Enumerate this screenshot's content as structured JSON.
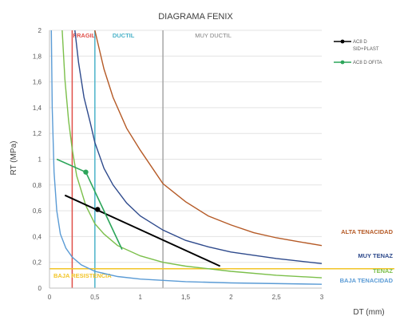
{
  "chart_data": {
    "type": "line",
    "title": "DIAGRAMA FENIX",
    "xlabel": "DT (mm)",
    "ylabel": "RT (MPa)",
    "xlim": [
      0,
      3
    ],
    "ylim": [
      0,
      2
    ],
    "grid": "horizontal",
    "x_ticks": [
      "0",
      "0,5",
      "1",
      "1,5",
      "2",
      "2,5",
      "3"
    ],
    "y_ticks": [
      "0",
      "0,2",
      "0,4",
      "0,6",
      "0,8",
      "1",
      "1,2",
      "1,4",
      "1,6",
      "1,8",
      "2"
    ],
    "legend_position": "top-right",
    "legend": [
      {
        "label_lines": [
          "AC8 D",
          "SID+PLAST"
        ],
        "color": "#000000"
      },
      {
        "label_lines": [
          "AC8 D OFITA"
        ],
        "color": "#2ca55a"
      }
    ],
    "vertical_lines": [
      {
        "x": 0.25,
        "label": "FRAGIL",
        "color": "#e0504a"
      },
      {
        "x": 0.5,
        "label": "DUCTIL",
        "color": "#4cb3c9"
      },
      {
        "x": 1.25,
        "label": "MUY DUCTIL",
        "color": "#a6a6a6"
      }
    ],
    "horizontal_lines": [
      {
        "y": 0.15,
        "label": "BAJA RESISTENCIA",
        "color": "#f2c427"
      }
    ],
    "reference_curves": [
      {
        "label": "ALTA TENACIDAD",
        "color": "#b55a26",
        "points": [
          [
            0.5,
            2.0
          ],
          [
            0.6,
            1.7
          ],
          [
            0.7,
            1.48
          ],
          [
            0.85,
            1.24
          ],
          [
            1.0,
            1.07
          ],
          [
            1.25,
            0.81
          ],
          [
            1.5,
            0.67
          ],
          [
            1.75,
            0.56
          ],
          [
            2.0,
            0.49
          ],
          [
            2.25,
            0.43
          ],
          [
            2.5,
            0.39
          ],
          [
            2.75,
            0.36
          ],
          [
            3.0,
            0.33
          ]
        ]
      },
      {
        "label": "MUY TENAZ",
        "color": "#2e4a8c",
        "points": [
          [
            0.28,
            2.0
          ],
          [
            0.32,
            1.75
          ],
          [
            0.38,
            1.48
          ],
          [
            0.45,
            1.28
          ],
          [
            0.5,
            1.13
          ],
          [
            0.6,
            0.93
          ],
          [
            0.7,
            0.8
          ],
          [
            0.85,
            0.66
          ],
          [
            1.0,
            0.56
          ],
          [
            1.25,
            0.45
          ],
          [
            1.5,
            0.37
          ],
          [
            1.75,
            0.32
          ],
          [
            2.0,
            0.28
          ],
          [
            2.5,
            0.23
          ],
          [
            3.0,
            0.19
          ]
        ]
      },
      {
        "label": "TENAZ",
        "color": "#7bbf4a",
        "points": [
          [
            0.14,
            2.0
          ],
          [
            0.17,
            1.62
          ],
          [
            0.21,
            1.3
          ],
          [
            0.25,
            1.08
          ],
          [
            0.3,
            0.87
          ],
          [
            0.4,
            0.64
          ],
          [
            0.5,
            0.5
          ],
          [
            0.6,
            0.42
          ],
          [
            0.75,
            0.33
          ],
          [
            1.0,
            0.25
          ],
          [
            1.25,
            0.2
          ],
          [
            1.5,
            0.17
          ],
          [
            2.0,
            0.13
          ],
          [
            2.5,
            0.1
          ],
          [
            3.0,
            0.08
          ]
        ]
      },
      {
        "label": "BAJA TENACIDAD",
        "color": "#5a9bd5",
        "points": [
          [
            0.02,
            2.0
          ],
          [
            0.03,
            1.4
          ],
          [
            0.05,
            0.9
          ],
          [
            0.08,
            0.6
          ],
          [
            0.12,
            0.42
          ],
          [
            0.18,
            0.31
          ],
          [
            0.25,
            0.24
          ],
          [
            0.35,
            0.18
          ],
          [
            0.5,
            0.13
          ],
          [
            0.75,
            0.09
          ],
          [
            1.0,
            0.07
          ],
          [
            1.5,
            0.05
          ],
          [
            2.0,
            0.04
          ],
          [
            3.0,
            0.03
          ]
        ]
      }
    ],
    "series": [
      {
        "name": "AC8 D SID+PLAST",
        "color": "#000000",
        "points": [
          [
            0.17,
            0.72
          ],
          [
            1.88,
            0.17
          ]
        ],
        "marker": [
          0.53,
          0.61
        ]
      },
      {
        "name": "AC8 D OFITA",
        "color": "#2ca55a",
        "points": [
          [
            0.08,
            1.0
          ],
          [
            0.4,
            0.9
          ],
          [
            0.8,
            0.3
          ]
        ],
        "marker": [
          0.4,
          0.9
        ]
      }
    ]
  }
}
